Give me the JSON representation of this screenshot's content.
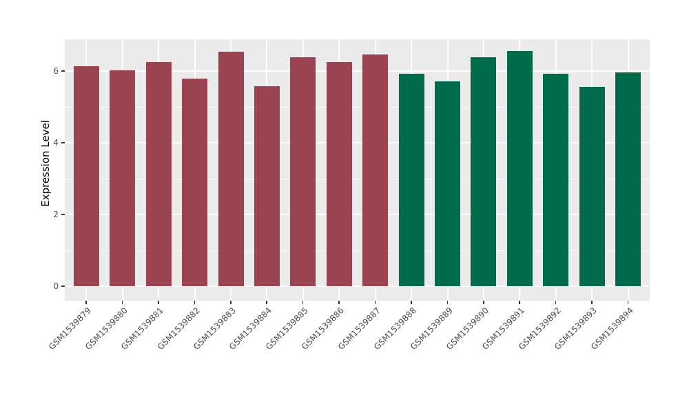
{
  "chart_data": {
    "type": "bar",
    "title": "",
    "xlabel": "",
    "ylabel": "Expression Level",
    "categories": [
      "GSM1539879",
      "GSM1539880",
      "GSM1539881",
      "GSM1539882",
      "GSM1539883",
      "GSM1539884",
      "GSM1539885",
      "GSM1539886",
      "GSM1539887",
      "GSM1539888",
      "GSM1539889",
      "GSM1539890",
      "GSM1539891",
      "GSM1539892",
      "GSM1539893",
      "GSM1539894"
    ],
    "values": [
      6.14,
      6.02,
      6.25,
      5.8,
      6.54,
      5.58,
      6.38,
      6.25,
      6.46,
      5.92,
      5.72,
      6.39,
      6.56,
      5.93,
      5.56,
      5.97
    ],
    "bar_colors": [
      "#9A4452",
      "#9A4452",
      "#9A4452",
      "#9A4452",
      "#9A4452",
      "#9A4452",
      "#9A4452",
      "#9A4452",
      "#9A4452",
      "#006B4D",
      "#006B4D",
      "#006B4D",
      "#006B4D",
      "#006B4D",
      "#006B4D",
      "#006B4D"
    ],
    "group_boundaries": {
      "maroon_count": 9,
      "green_count": 7
    },
    "yticks": [
      0,
      2,
      4,
      6
    ],
    "yticks_minor": [
      1,
      3,
      5
    ],
    "ylim": [
      0,
      6.89
    ],
    "legend": "none",
    "grid": "major+minor",
    "styles": {
      "panel_background": "#EBEBEB",
      "gridline_major": "#FFFFFF",
      "gridline_minor": "rgba(255,255,255,0.65)",
      "tick_mark_color": "#333333",
      "axis_text_color": "#4D4D4D",
      "axis_title_color": "#000000",
      "maroon": "#9A4452",
      "green": "#006B4D"
    }
  }
}
